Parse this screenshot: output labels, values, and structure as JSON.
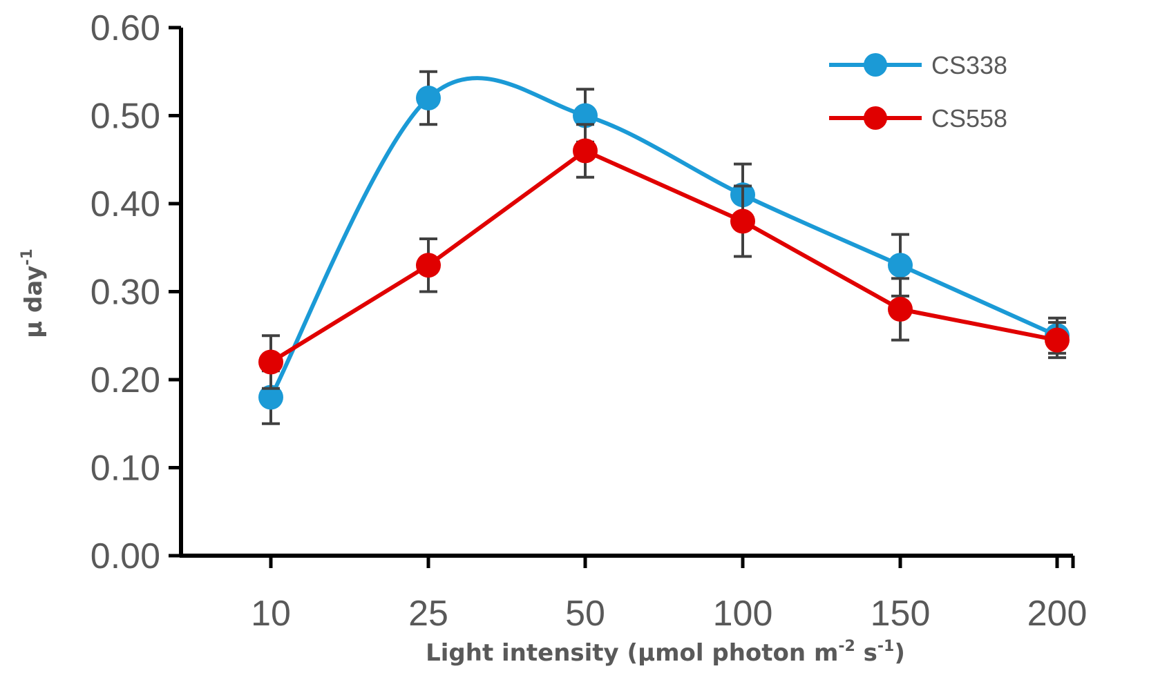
{
  "chart_data": {
    "type": "line",
    "title": "",
    "categories": [
      "10",
      "25",
      "50",
      "100",
      "150",
      "200"
    ],
    "xlabel": {
      "text": "Light intensity (µmol photon m",
      "sup1": "-2",
      "mid": " s",
      "sup2": "-1",
      "end": ")"
    },
    "ylabel": {
      "text": "µ day",
      "sup": "-1"
    },
    "ylim": [
      0,
      0.6
    ],
    "yticks": [
      0.0,
      0.1,
      0.2,
      0.3,
      0.4,
      0.5,
      0.6
    ],
    "ytick_labels": [
      "0.00",
      "0.10",
      "0.20",
      "0.30",
      "0.40",
      "0.50",
      "0.60"
    ],
    "grid": false,
    "legend_position": "top-right",
    "series": [
      {
        "name": "CS338",
        "color": "#1b9ad6",
        "smooth": true,
        "values": [
          0.18,
          0.52,
          0.5,
          0.41,
          0.33,
          0.25
        ],
        "errors": [
          0.03,
          0.03,
          0.03,
          0.035,
          0.035,
          0.02
        ]
      },
      {
        "name": "CS558",
        "color": "#e00000",
        "smooth": false,
        "values": [
          0.22,
          0.33,
          0.46,
          0.38,
          0.28,
          0.245
        ],
        "errors": [
          0.03,
          0.03,
          0.03,
          0.04,
          0.035,
          0.02
        ]
      }
    ]
  }
}
